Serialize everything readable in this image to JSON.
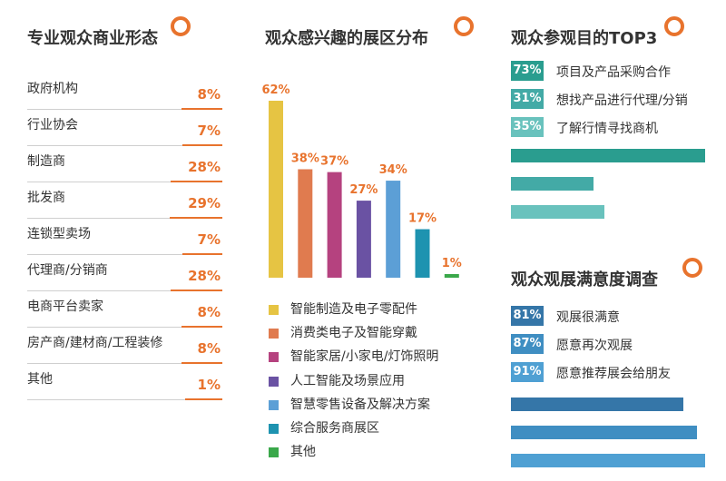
{
  "audience_types": {
    "title": "专业观众商业形态",
    "items": [
      {
        "label": "政府机构",
        "value": "8%",
        "pct": 8
      },
      {
        "label": "行业协会",
        "value": "7%",
        "pct": 7
      },
      {
        "label": "制造商",
        "value": "28%",
        "pct": 28
      },
      {
        "label": "批发商",
        "value": "29%",
        "pct": 29
      },
      {
        "label": "连锁型卖场",
        "value": "7%",
        "pct": 7
      },
      {
        "label": "代理商/分销商",
        "value": "28%",
        "pct": 28
      },
      {
        "label": "电商平台卖家",
        "value": "8%",
        "pct": 8
      },
      {
        "label": "房产商/建材商/工程装修",
        "value": "8%",
        "pct": 8
      },
      {
        "label": "其他",
        "value": "1%",
        "pct": 1
      }
    ],
    "accent_color": "#e8732d"
  },
  "interest_areas": {
    "title": "观众感兴趣的展区分布"
  },
  "top3": {
    "title": "观众参观目的TOP3",
    "items": [
      {
        "value": "73%",
        "pct": 73,
        "label": "项目及产品采购合作",
        "color": "#2a9d8f"
      },
      {
        "value": "31%",
        "pct": 31,
        "label": "想找产品进行代理/分销",
        "color": "#43aaa6"
      },
      {
        "value": "35%",
        "pct": 35,
        "label": "了解行情寻找商机",
        "color": "#69c2bd"
      }
    ]
  },
  "satisfaction": {
    "title": "观众观展满意度调查",
    "items": [
      {
        "value": "81%",
        "pct": 81,
        "label": "观展很满意",
        "color": "#3576a8"
      },
      {
        "value": "87%",
        "pct": 87,
        "label": "愿意再次观展",
        "color": "#3f8ec2"
      },
      {
        "value": "91%",
        "pct": 91,
        "label": "愿意推荐展会给朋友",
        "color": "#4fa0d3"
      }
    ]
  },
  "chart_data": [
    {
      "type": "bar",
      "title": "观众感兴趣的展区分布",
      "categories": [
        "智能制造及电子零配件",
        "消费类电子及智能穿戴",
        "智能家居/小家电/灯饰照明",
        "人工智能及场景应用",
        "智慧零售设备及解决方案",
        "综合服务商展区",
        "其他"
      ],
      "values": [
        62,
        38,
        37,
        27,
        34,
        17,
        1
      ],
      "labels": [
        "62%",
        "38%",
        "37%",
        "27%",
        "34%",
        "17%",
        "1%"
      ],
      "colors": [
        "#e6c443",
        "#e07b4f",
        "#b5427f",
        "#6a52a3",
        "#5c9fd6",
        "#1e93b0",
        "#3aa84a"
      ],
      "unit": "%",
      "ylim": [
        0,
        62
      ],
      "grid": false,
      "legend_position": "bottom"
    }
  ]
}
